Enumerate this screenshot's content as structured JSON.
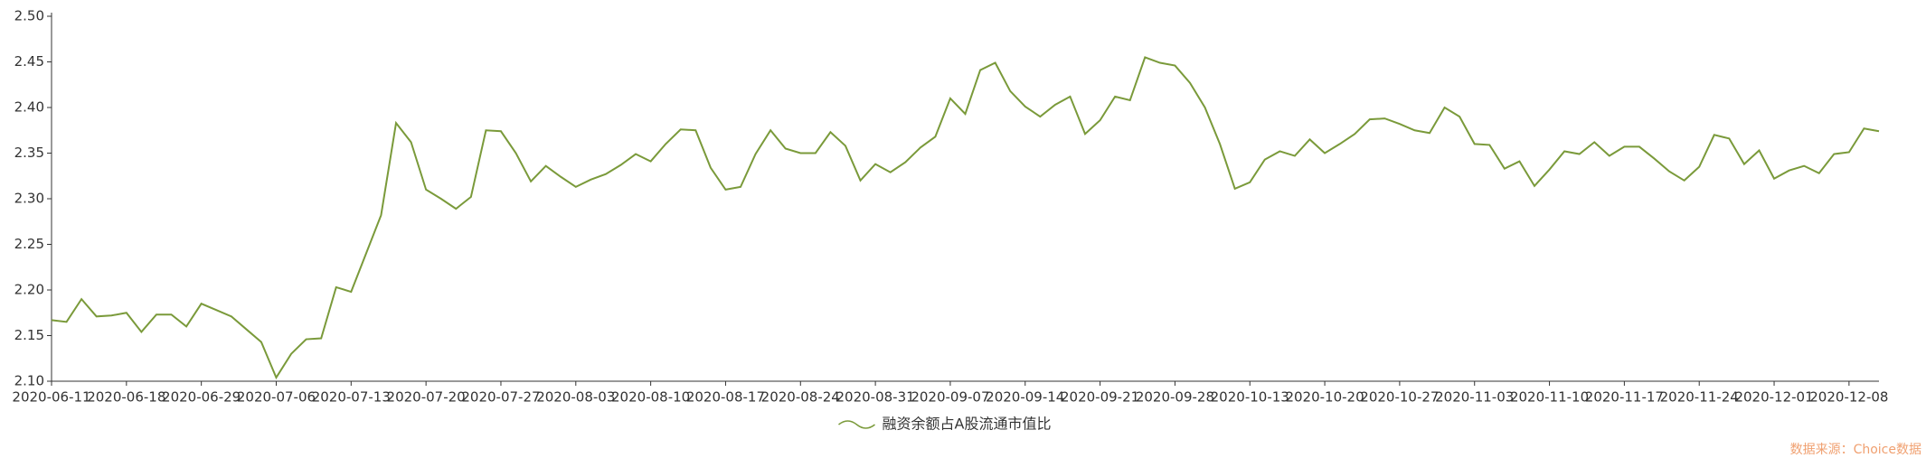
{
  "chart_data": {
    "type": "line",
    "categories": [
      "2020-06-11",
      null,
      null,
      null,
      null,
      "2020-06-18",
      null,
      null,
      null,
      null,
      "2020-06-29",
      null,
      null,
      null,
      null,
      "2020-07-06",
      null,
      null,
      null,
      null,
      "2020-07-13",
      null,
      null,
      null,
      null,
      "2020-07-20",
      null,
      null,
      null,
      null,
      "2020-07-27",
      null,
      null,
      null,
      null,
      "2020-08-03",
      null,
      null,
      null,
      null,
      "2020-08-10",
      null,
      null,
      null,
      null,
      "2020-08-17",
      null,
      null,
      null,
      null,
      "2020-08-24",
      null,
      null,
      null,
      null,
      "2020-08-31",
      null,
      null,
      null,
      null,
      "2020-09-07",
      null,
      null,
      null,
      null,
      "2020-09-14",
      null,
      null,
      null,
      null,
      "2020-09-21",
      null,
      null,
      null,
      null,
      "2020-09-28",
      null,
      null,
      null,
      null,
      "2020-10-13",
      null,
      null,
      null,
      null,
      "2020-10-20",
      null,
      null,
      null,
      null,
      "2020-10-27",
      null,
      null,
      null,
      null,
      "2020-11-03",
      null,
      null,
      null,
      null,
      "2020-11-10",
      null,
      null,
      null,
      null,
      "2020-11-17",
      null,
      null,
      null,
      null,
      "2020-11-24",
      null,
      null,
      null,
      null,
      "2020-12-01",
      null,
      null,
      null,
      null,
      "2020-12-08",
      null,
      null
    ],
    "series": [
      {
        "name": "融资余额占A股流通市值比",
        "color": "#7a9a3a",
        "values": [
          2.167,
          2.165,
          2.19,
          2.171,
          2.172,
          2.175,
          2.154,
          2.173,
          2.173,
          2.16,
          2.185,
          2.178,
          2.171,
          2.157,
          2.143,
          2.104,
          2.13,
          2.146,
          2.147,
          2.203,
          2.198,
          2.24,
          2.282,
          2.383,
          2.362,
          2.31,
          2.3,
          2.289,
          2.302,
          2.375,
          2.374,
          2.35,
          2.319,
          2.336,
          2.324,
          2.313,
          2.321,
          2.327,
          2.337,
          2.349,
          2.341,
          2.36,
          2.376,
          2.375,
          2.334,
          2.31,
          2.313,
          2.349,
          2.375,
          2.355,
          2.35,
          2.35,
          2.373,
          2.358,
          2.32,
          2.338,
          2.329,
          2.34,
          2.356,
          2.368,
          2.41,
          2.393,
          2.441,
          2.449,
          2.418,
          2.401,
          2.39,
          2.403,
          2.412,
          2.371,
          2.386,
          2.412,
          2.408,
          2.455,
          2.449,
          2.446,
          2.427,
          2.4,
          2.36,
          2.311,
          2.318,
          2.343,
          2.352,
          2.347,
          2.365,
          2.35,
          2.36,
          2.371,
          2.387,
          2.388,
          2.382,
          2.375,
          2.372,
          2.4,
          2.39,
          2.36,
          2.359,
          2.333,
          2.341,
          2.314,
          2.332,
          2.352,
          2.349,
          2.362,
          2.347,
          2.357,
          2.357,
          2.344,
          2.33,
          2.32,
          2.335,
          2.37,
          2.366,
          2.338,
          2.353,
          2.322,
          2.331,
          2.336,
          2.328,
          2.349,
          2.351,
          2.377,
          2.374
        ]
      }
    ],
    "ylim": [
      2.1,
      2.5
    ],
    "yticks": [
      {
        "value": 2.1,
        "label": "2.10"
      },
      {
        "value": 2.15,
        "label": "2.15"
      },
      {
        "value": 2.2,
        "label": "2.20"
      },
      {
        "value": 2.25,
        "label": "2.25"
      },
      {
        "value": 2.3,
        "label": "2.30"
      },
      {
        "value": 2.35,
        "label": "2.35"
      },
      {
        "value": 2.4,
        "label": "2.40"
      },
      {
        "value": 2.45,
        "label": "2.45"
      },
      {
        "value": 2.5,
        "label": "2.50"
      }
    ],
    "grid": false,
    "legend": "bottom",
    "source": "数据来源：Choice数据"
  }
}
